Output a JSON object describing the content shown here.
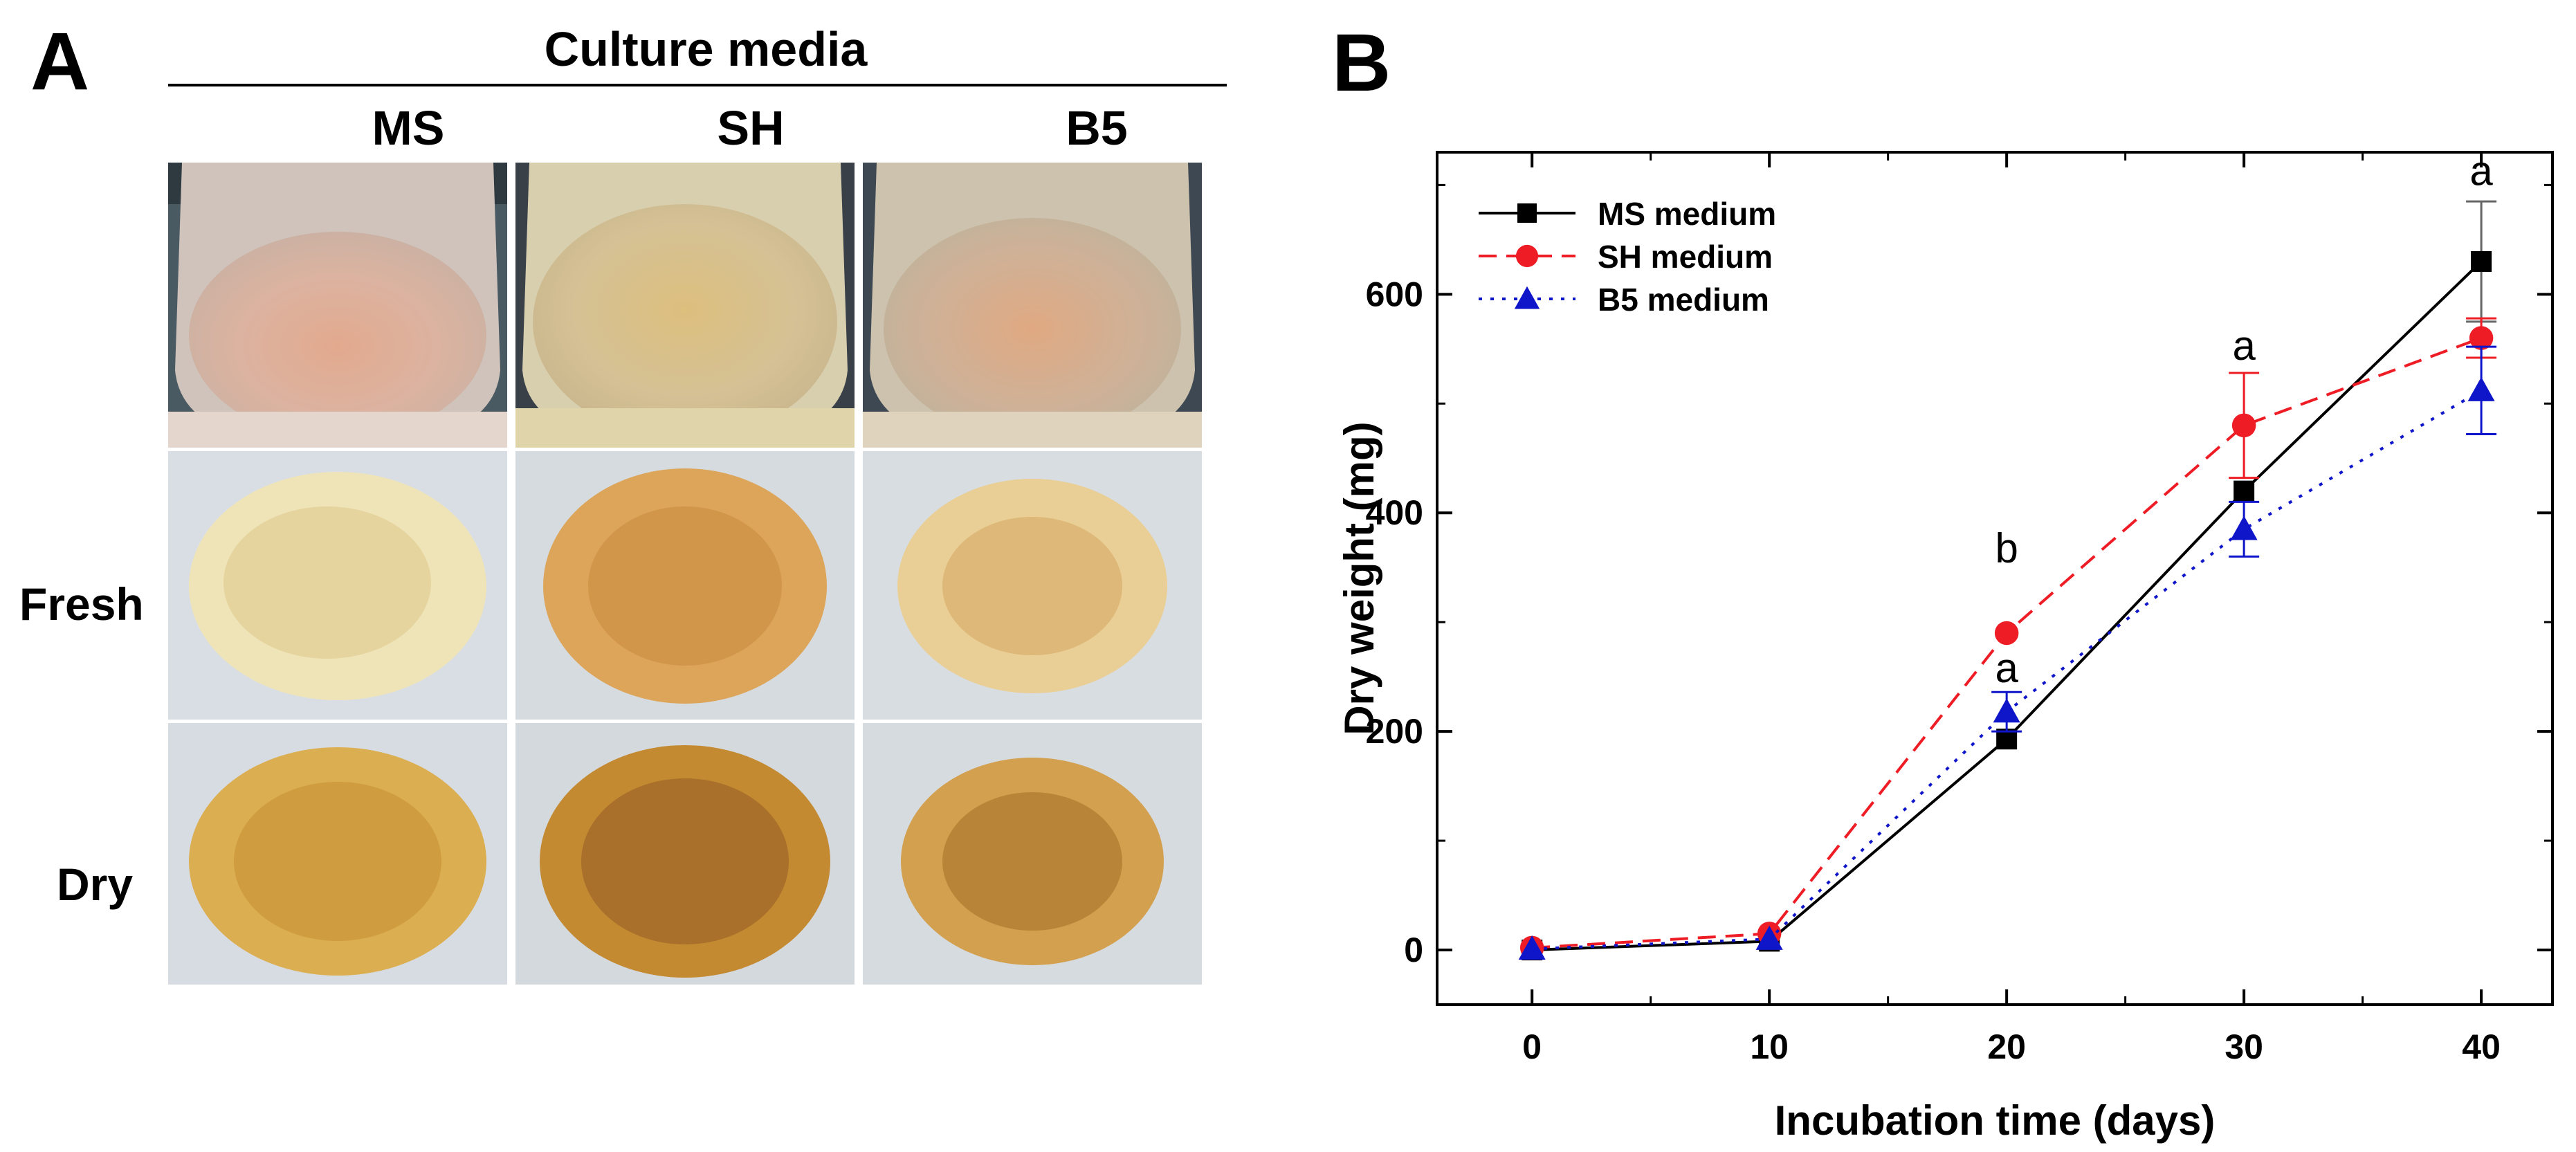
{
  "panel_a": {
    "letter": "A",
    "title": "Culture media",
    "columns": [
      "MS",
      "SH",
      "B5"
    ],
    "rows": [
      "Fresh",
      "Dry"
    ]
  },
  "panel_b": {
    "letter": "B"
  },
  "chart_data": {
    "type": "line",
    "x": [
      0,
      10,
      20,
      30,
      40
    ],
    "xlabel": "Incubation time (days)",
    "ylabel": "Dry weight (mg)",
    "xlim": [
      -4,
      43
    ],
    "ylim": [
      -50,
      730
    ],
    "xticks": [
      0,
      10,
      20,
      30,
      40
    ],
    "yticks": [
      0,
      200,
      400,
      600
    ],
    "legend_position": "top-left",
    "series": [
      {
        "name": "MS medium",
        "values": [
          0,
          8,
          193,
          420,
          630
        ],
        "errors": [
          0,
          0,
          0,
          0,
          55
        ],
        "color": "#000000",
        "marker": "square",
        "line": "solid"
      },
      {
        "name": "SH medium",
        "values": [
          2,
          15,
          290,
          480,
          560
        ],
        "errors": [
          0,
          0,
          0,
          48,
          18
        ],
        "color": "#ee1c25",
        "marker": "circle",
        "line": "dashed"
      },
      {
        "name": "B5 medium",
        "values": [
          1,
          10,
          218,
          385,
          512
        ],
        "errors": [
          0,
          0,
          18,
          25,
          40
        ],
        "color": "#0f16c9",
        "marker": "triangle",
        "line": "dotted"
      }
    ],
    "annotations": [
      {
        "text": "a",
        "x": 20,
        "y": 245
      },
      {
        "text": "b",
        "x": 20,
        "y": 355
      },
      {
        "text": "a",
        "x": 30,
        "y": 540
      },
      {
        "text": "a",
        "x": 40,
        "y": 700
      }
    ]
  }
}
